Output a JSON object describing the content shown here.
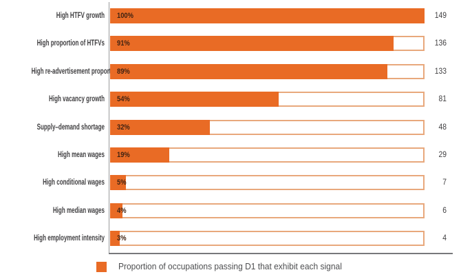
{
  "chart_data": {
    "type": "bar",
    "orientation": "horizontal",
    "title": "",
    "xlabel": "",
    "ylabel": "",
    "xlim_pct": [
      0,
      100
    ],
    "grid": false,
    "legend": {
      "position": "bottom",
      "label": "Proportion of occupations passing D1 that exhibit each signal"
    },
    "colors": {
      "bar_fill": "#e96b25",
      "bar_outline": "#e8a87c",
      "axis_line": "#999a9c",
      "baseline": "#77787b",
      "category_text": "#414042",
      "value_text": "#3f2212",
      "count_text": "#414042",
      "legend_text": "#4d4e50"
    },
    "categories": [
      "High HTFV growth",
      "High proportion of HTFVs",
      "High re-advertisement proportion",
      "High vacancy growth",
      "Supply–demand shortage",
      "High mean wages",
      "High conditional wages",
      "High median wages",
      "High employment intensity"
    ],
    "rows": [
      {
        "label": "High HTFV growth",
        "pct": 100,
        "pct_label": "100%",
        "count": "149"
      },
      {
        "label": "High proportion of HTFVs",
        "pct": 91,
        "pct_label": "91%",
        "count": "136"
      },
      {
        "label": "High re-advertisement proportion",
        "pct": 89,
        "pct_label": "89%",
        "count": "133"
      },
      {
        "label": "High vacancy growth",
        "pct": 54,
        "pct_label": "54%",
        "count": "81"
      },
      {
        "label": "Supply–demand shortage",
        "pct": 32,
        "pct_label": "32%",
        "count": "48"
      },
      {
        "label": "High mean wages",
        "pct": 19,
        "pct_label": "19%",
        "count": "29"
      },
      {
        "label": "High conditional wages",
        "pct": 5,
        "pct_label": "5%",
        "count": "7"
      },
      {
        "label": "High median wages",
        "pct": 4,
        "pct_label": "4%",
        "count": "6"
      },
      {
        "label": "High employment intensity",
        "pct": 3,
        "pct_label": "3%",
        "count": "4"
      }
    ]
  }
}
